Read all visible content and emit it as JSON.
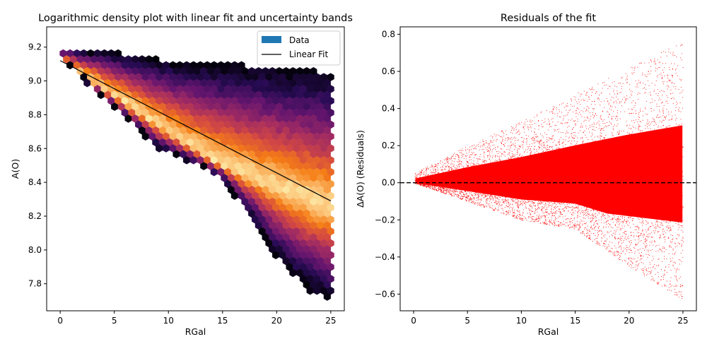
{
  "chart_data": [
    {
      "type": "hexbin",
      "title": "Logarithmic density plot with linear fit and uncertainty bands",
      "xlabel": "RGal",
      "ylabel": "A(O)",
      "xlim": [
        -1.25,
        26.25
      ],
      "ylim": [
        7.64,
        9.32
      ],
      "xticks": [
        0,
        5,
        10,
        15,
        20,
        25
      ],
      "yticks": [
        7.8,
        8.0,
        8.2,
        8.4,
        8.6,
        8.8,
        9.0,
        9.2
      ],
      "xtick_labels": [
        "0",
        "5",
        "10",
        "15",
        "20",
        "25"
      ],
      "ytick_labels": [
        "7.8",
        "8.0",
        "8.2",
        "8.4",
        "8.6",
        "8.8",
        "9.0",
        "9.2"
      ],
      "colormap": "magma",
      "data_region": {
        "upper_edge": [
          [
            0,
            9.2
          ],
          [
            5,
            9.17
          ],
          [
            10,
            9.12
          ],
          [
            15,
            9.1
          ],
          [
            20,
            9.08
          ],
          [
            25,
            9.05
          ]
        ],
        "lower_edge": [
          [
            0,
            9.14
          ],
          [
            3,
            8.95
          ],
          [
            6,
            8.78
          ],
          [
            9,
            8.6
          ],
          [
            12,
            8.52
          ],
          [
            15,
            8.42
          ],
          [
            18,
            8.15
          ],
          [
            20,
            7.95
          ],
          [
            23,
            7.76
          ],
          [
            25,
            7.7
          ]
        ],
        "peak_band": [
          [
            0,
            9.12
          ],
          [
            5,
            8.92
          ],
          [
            10,
            8.7
          ],
          [
            15,
            8.5
          ],
          [
            20,
            8.38
          ],
          [
            25,
            8.25
          ]
        ]
      },
      "fit": {
        "name": "Linear Fit",
        "x": [
          0,
          25
        ],
        "y": [
          9.12,
          8.29
        ],
        "color": "#000000"
      },
      "legend": {
        "position": "upper right",
        "entries": [
          {
            "label": "Data",
            "kind": "patch",
            "color": "#1f77b4"
          },
          {
            "label": "Linear Fit",
            "kind": "line",
            "color": "#000000"
          }
        ]
      }
    },
    {
      "type": "scatter",
      "title": "Residuals of the fit",
      "xlabel": "RGal",
      "ylabel": "ΔA(O) (Residuals)",
      "xlim": [
        -1.25,
        26.25
      ],
      "ylim": [
        -0.69,
        0.84
      ],
      "xticks": [
        0,
        5,
        10,
        15,
        20,
        25
      ],
      "yticks": [
        -0.6,
        -0.4,
        -0.2,
        0.0,
        0.2,
        0.4,
        0.6,
        0.8
      ],
      "xtick_labels": [
        "0",
        "5",
        "10",
        "15",
        "20",
        "25"
      ],
      "ytick_labels": [
        "−0.6",
        "−0.4",
        "−0.2",
        "0.0",
        "0.2",
        "0.4",
        "0.6",
        "0.8"
      ],
      "marker_color": "#ff0000",
      "zero_line": {
        "y": 0,
        "style": "dashed",
        "color": "#000000"
      },
      "envelope": {
        "x": [
          0,
          5,
          10,
          15,
          20,
          25
        ],
        "upper": [
          0.05,
          0.2,
          0.33,
          0.48,
          0.62,
          0.76
        ],
        "lower": [
          0.0,
          -0.1,
          -0.2,
          -0.25,
          -0.45,
          -0.63
        ]
      }
    }
  ]
}
